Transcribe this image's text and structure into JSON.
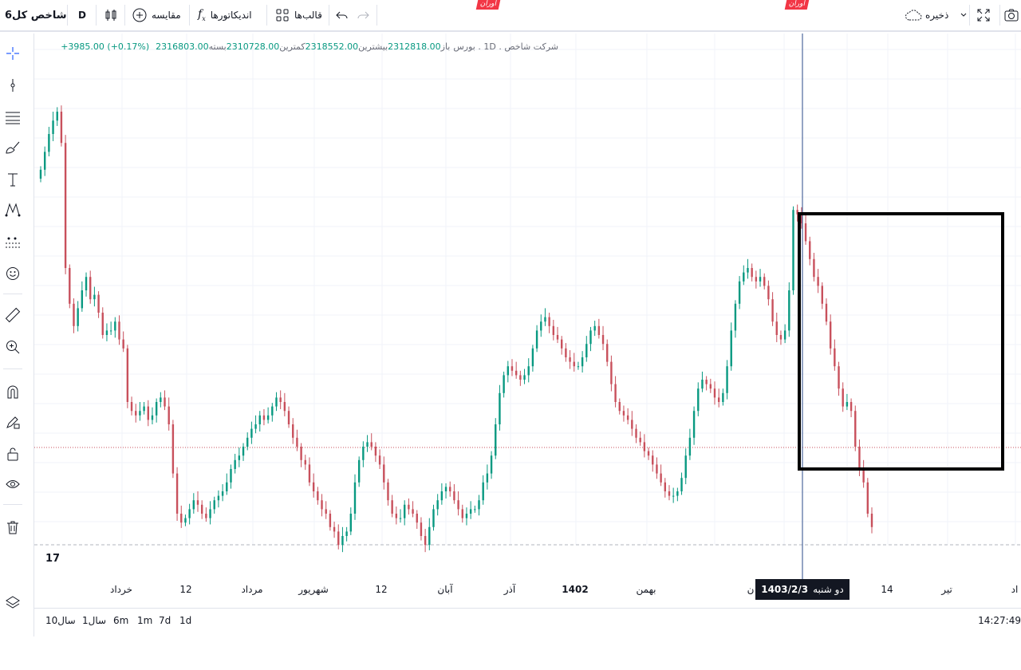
{
  "toolbar": {
    "symbol": "شاخص کل6",
    "interval": "D",
    "compare_label": "مقایسه",
    "indicators_label": "اندیکاتورها",
    "templates_label": "قالب‌ها",
    "save_label": "ذخیره"
  },
  "legend": {
    "name": "شرکت شاخص",
    "interval": "1D",
    "exchange": "بورس",
    "open_label": "باز",
    "open": "2312818.00",
    "high_label": "بیشترین",
    "high": "2318552.00",
    "low_label": "کمترین",
    "low": "2310728.00",
    "close_label": "بسته",
    "close": "2316803.00",
    "change": "+3985.00 (+0.17%)"
  },
  "time_axis": {
    "labels": [
      "خرداد",
      "12",
      "مرداد",
      "شهریور",
      "12",
      "آبان",
      "آذر",
      "1402",
      "بهمن",
      "ن",
      "14",
      "تیر",
      "اد"
    ],
    "crosshair_day": "دو شنبه",
    "crosshair_date": "1403/2/3"
  },
  "ranges": [
    "10سال",
    "1سال",
    "6m",
    "1m",
    "7d",
    "1d"
  ],
  "clock": "14:27:49",
  "logo_text": "17",
  "watermark_text": "آوران",
  "colors": {
    "up": "#089981",
    "down": "#c8505c",
    "grid": "#f0f3fa",
    "crosshair": "#2a4a8a",
    "price_line": "#c8505c"
  },
  "chart_data": {
    "type": "candlestick",
    "ylim": [
      0,
      1
    ],
    "series_close": [
      0.82,
      0.86,
      0.9,
      0.93,
      0.95,
      0.88,
      0.6,
      0.52,
      0.47,
      0.51,
      0.55,
      0.58,
      0.53,
      0.54,
      0.5,
      0.45,
      0.46,
      0.46,
      0.48,
      0.44,
      0.42,
      0.3,
      0.28,
      0.27,
      0.28,
      0.29,
      0.26,
      0.27,
      0.3,
      0.31,
      0.29,
      0.25,
      0.14,
      0.05,
      0.03,
      0.04,
      0.06,
      0.08,
      0.07,
      0.05,
      0.04,
      0.06,
      0.08,
      0.09,
      0.1,
      0.12,
      0.15,
      0.17,
      0.18,
      0.2,
      0.22,
      0.24,
      0.25,
      0.27,
      0.26,
      0.27,
      0.29,
      0.31,
      0.3,
      0.28,
      0.25,
      0.22,
      0.2,
      0.17,
      0.16,
      0.12,
      0.1,
      0.08,
      0.06,
      0.05,
      0.02,
      0.01,
      -0.02,
      0.0,
      0.01,
      0.05,
      0.12,
      0.17,
      0.2,
      0.21,
      0.2,
      0.18,
      0.16,
      0.12,
      0.08,
      0.05,
      0.04,
      0.04,
      0.07,
      0.06,
      0.05,
      0.03,
      0.0,
      -0.02,
      0.02,
      0.06,
      0.08,
      0.1,
      0.11,
      0.1,
      0.08,
      0.06,
      0.04,
      0.05,
      0.06,
      0.06,
      0.08,
      0.12,
      0.14,
      0.18,
      0.25,
      0.32,
      0.36,
      0.38,
      0.37,
      0.36,
      0.35,
      0.36,
      0.38,
      0.42,
      0.46,
      0.48,
      0.49,
      0.47,
      0.45,
      0.44,
      0.42,
      0.4,
      0.39,
      0.38,
      0.38,
      0.4,
      0.43,
      0.46,
      0.47,
      0.45,
      0.43,
      0.39,
      0.34,
      0.3,
      0.28,
      0.27,
      0.26,
      0.24,
      0.22,
      0.21,
      0.19,
      0.18,
      0.16,
      0.14,
      0.12,
      0.1,
      0.09,
      0.09,
      0.1,
      0.13,
      0.18,
      0.22,
      0.28,
      0.33,
      0.35,
      0.34,
      0.33,
      0.31,
      0.3,
      0.32,
      0.38,
      0.46,
      0.52,
      0.57,
      0.59,
      0.6,
      0.58,
      0.57,
      0.58,
      0.56,
      0.53,
      0.48,
      0.45,
      0.44,
      0.46,
      0.55,
      0.73,
      0.72,
      0.7,
      0.66,
      0.62,
      0.58,
      0.56,
      0.52,
      0.48,
      0.42,
      0.38,
      0.33,
      0.29,
      0.3,
      0.28,
      0.2,
      0.15,
      0.12,
      0.05,
      0.02
    ]
  }
}
